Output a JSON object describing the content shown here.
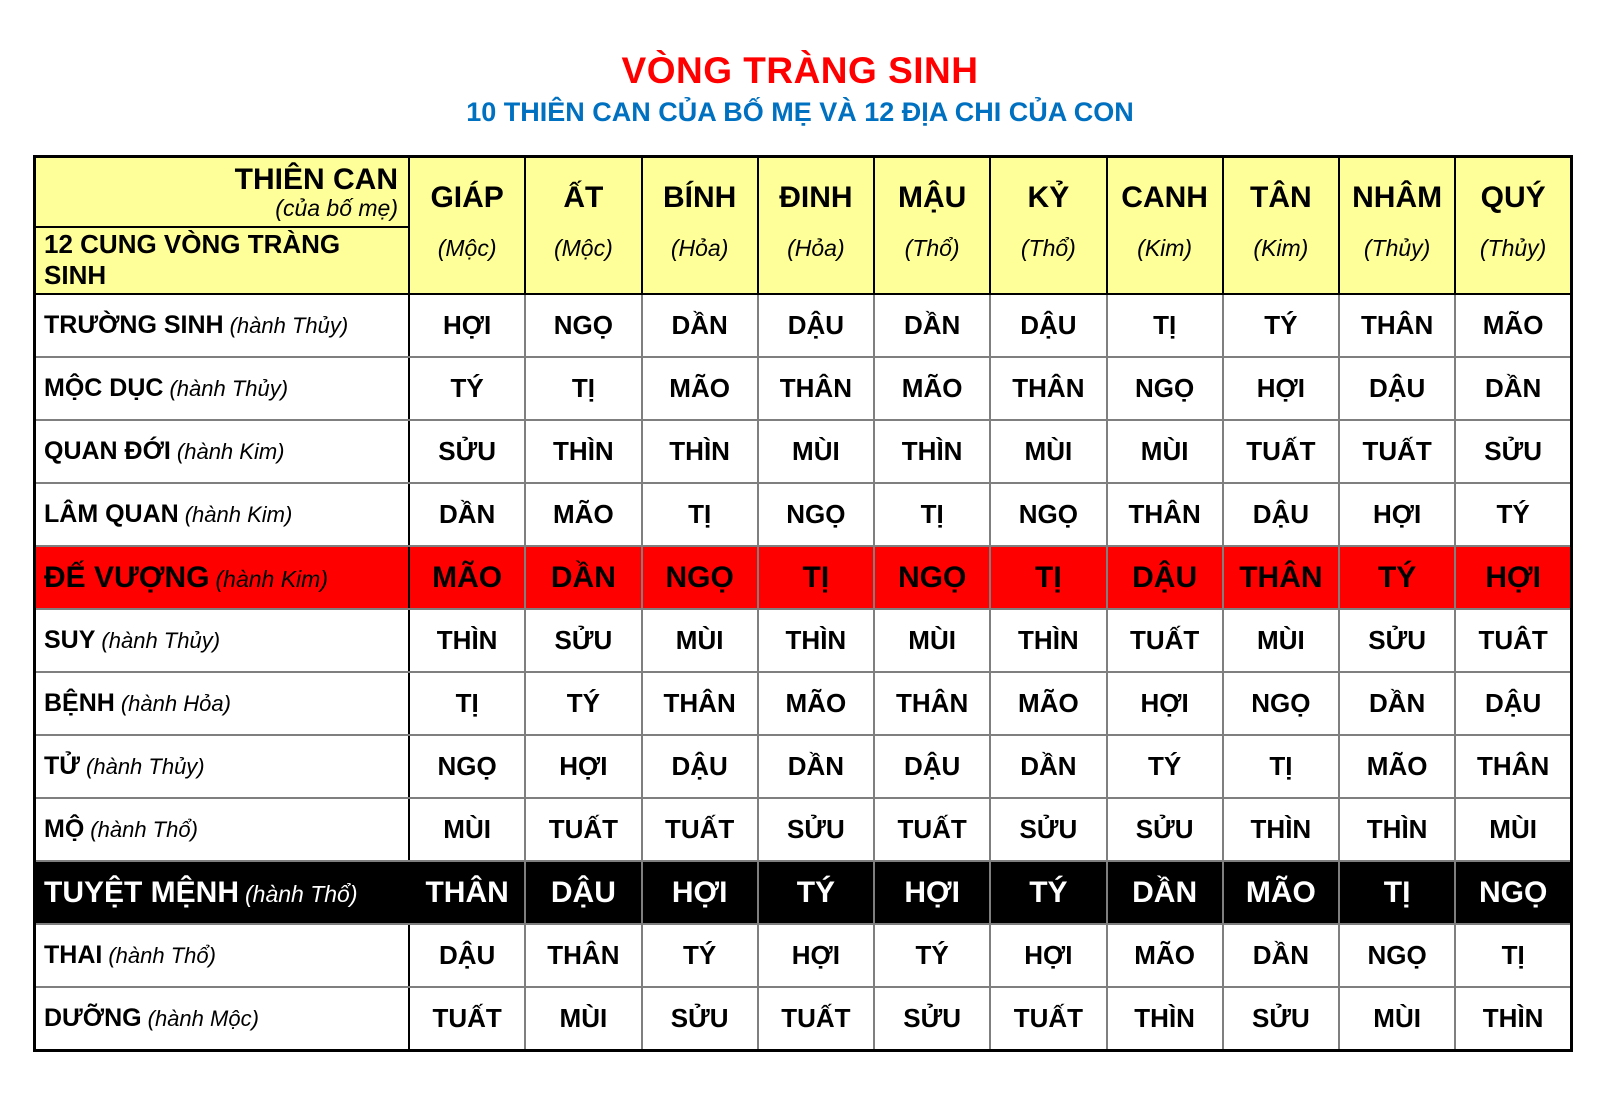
{
  "title": "VÒNG TRÀNG SINH",
  "subtitle": "10 THIÊN CAN CỦA BỐ MẸ VÀ 12 ĐỊA CHI CỦA CON",
  "colors": {
    "title_red": "#FF0000",
    "subtitle_blue": "#0070C0",
    "header_yellow": "#FFFF99",
    "highlight_red": "#FF0000",
    "highlight_black": "#000000",
    "grid_gray": "#7F7F7F"
  },
  "table": {
    "corner_header": {
      "line1": "THIÊN CAN",
      "line2": "(của bố mẹ)",
      "line3": "12 CUNG VÒNG TRÀNG SINH"
    },
    "columns": [
      {
        "name": "GIÁP",
        "element": "(Mộc)"
      },
      {
        "name": "ẤT",
        "element": "(Mộc)"
      },
      {
        "name": "BÍNH",
        "element": "(Hỏa)"
      },
      {
        "name": "ĐINH",
        "element": "(Hỏa)"
      },
      {
        "name": "MẬU",
        "element": "(Thổ)"
      },
      {
        "name": "KỶ",
        "element": "(Thổ)"
      },
      {
        "name": "CANH",
        "element": "(Kim)"
      },
      {
        "name": "TÂN",
        "element": "(Kim)"
      },
      {
        "name": "NHÂM",
        "element": "(Thủy)"
      },
      {
        "name": "QUÝ",
        "element": "(Thủy)"
      }
    ],
    "rows": [
      {
        "label": "TRƯỜNG SINH",
        "element": "(hành Thủy)",
        "style": "normal",
        "cells": [
          "HỢI",
          "NGỌ",
          "DẦN",
          "DẬU",
          "DẦN",
          "DẬU",
          "TỊ",
          "TÝ",
          "THÂN",
          "MÃO"
        ]
      },
      {
        "label": "MỘC DỤC",
        "element": "(hành Thủy)",
        "style": "normal",
        "cells": [
          "TÝ",
          "TỊ",
          "MÃO",
          "THÂN",
          "MÃO",
          "THÂN",
          "NGỌ",
          "HỢI",
          "DẬU",
          "DẦN"
        ]
      },
      {
        "label": "QUAN ĐỚI",
        "element": "(hành Kim)",
        "style": "normal",
        "cells": [
          "SỬU",
          "THÌN",
          "THÌN",
          "MÙI",
          "THÌN",
          "MÙI",
          "MÙI",
          "TUẤT",
          "TUẤT",
          "SỬU"
        ]
      },
      {
        "label": "LÂM QUAN",
        "element": "(hành Kim)",
        "style": "normal",
        "cells": [
          "DẦN",
          "MÃO",
          "TỊ",
          "NGỌ",
          "TỊ",
          "NGỌ",
          "THÂN",
          "DẬU",
          "HỢI",
          "TÝ"
        ]
      },
      {
        "label": "ĐẾ VƯỢNG",
        "element": "(hành Kim)",
        "style": "red",
        "cells": [
          "MÃO",
          "DẦN",
          "NGỌ",
          "TỊ",
          "NGỌ",
          "TỊ",
          "DẬU",
          "THÂN",
          "TÝ",
          "HỢI"
        ]
      },
      {
        "label": "SUY",
        "element": "(hành Thủy)",
        "style": "normal",
        "cells": [
          "THÌN",
          "SỬU",
          "MÙI",
          "THÌN",
          "MÙI",
          "THÌN",
          "TUẤT",
          "MÙI",
          "SỬU",
          "TUÂT"
        ]
      },
      {
        "label": "BỆNH",
        "element": "(hành Hỏa)",
        "style": "normal",
        "cells": [
          "TỊ",
          "TÝ",
          "THÂN",
          "MÃO",
          "THÂN",
          "MÃO",
          "HỢI",
          "NGỌ",
          "DẦN",
          "DẬU"
        ]
      },
      {
        "label": "TỬ",
        "element": "(hành Thủy)",
        "style": "normal",
        "cells": [
          "NGỌ",
          "HỢI",
          "DẬU",
          "DẦN",
          "DẬU",
          "DẦN",
          "TÝ",
          "TỊ",
          "MÃO",
          "THÂN"
        ]
      },
      {
        "label": "MỘ",
        "element": "(hành Thổ)",
        "style": "normal",
        "cells": [
          "MÙI",
          "TUẤT",
          "TUẤT",
          "SỬU",
          "TUẤT",
          "SỬU",
          "SỬU",
          "THÌN",
          "THÌN",
          "MÙI"
        ]
      },
      {
        "label": "TUYỆT MỆNH",
        "element": "(hành Thổ)",
        "style": "black",
        "cells": [
          "THÂN",
          "DẬU",
          "HỢI",
          "TÝ",
          "HỢI",
          "TÝ",
          "DẦN",
          "MÃO",
          "TỊ",
          "NGỌ"
        ]
      },
      {
        "label": "THAI",
        "element": "(hành Thổ)",
        "style": "normal",
        "cells": [
          "DẬU",
          "THÂN",
          "TÝ",
          "HỢI",
          "TÝ",
          "HỢI",
          "MÃO",
          "DẦN",
          "NGỌ",
          "TỊ"
        ]
      },
      {
        "label": "DƯỠNG",
        "element": "(hành Mộc)",
        "style": "normal",
        "cells": [
          "TUẤT",
          "MÙI",
          "SỬU",
          "TUẤT",
          "SỬU",
          "TUẤT",
          "THÌN",
          "SỬU",
          "MÙI",
          "THÌN"
        ]
      }
    ]
  }
}
